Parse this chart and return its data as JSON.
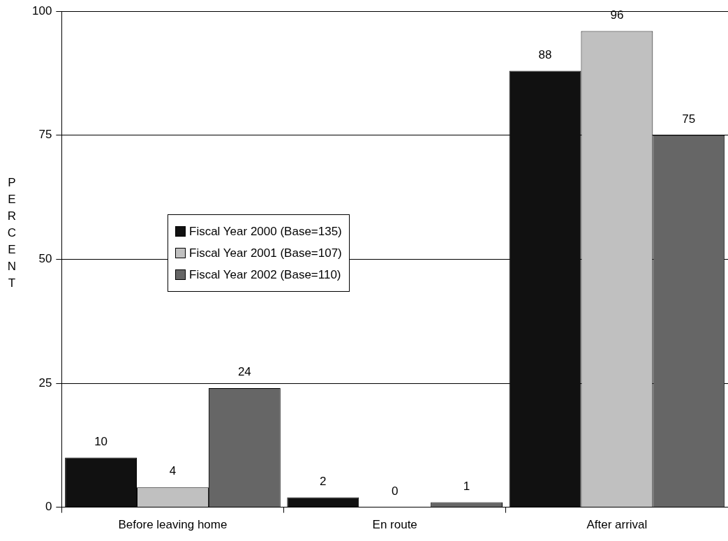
{
  "chart_data": {
    "type": "bar",
    "ylabel": "PERCENT",
    "categories": [
      "Before leaving home",
      "En route",
      "After arrival"
    ],
    "series": [
      {
        "name": "Fiscal Year 2000 (Base=135)",
        "color": "#111111",
        "values": [
          10,
          2,
          88
        ]
      },
      {
        "name": "Fiscal Year 2001 (Base=107)",
        "color": "#c0c0c0",
        "values": [
          4,
          0,
          96
        ]
      },
      {
        "name": "Fiscal Year 2002 (Base=110)",
        "color": "#666666",
        "values": [
          24,
          1,
          75
        ]
      }
    ],
    "ylim": [
      0,
      100
    ],
    "yticks": [
      0,
      25,
      50,
      75,
      100
    ],
    "grid": "y",
    "legend": "left",
    "data_labels": true
  }
}
